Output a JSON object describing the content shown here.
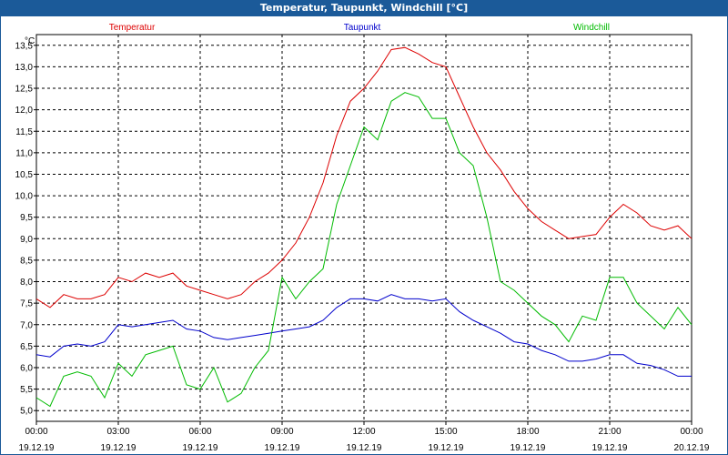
{
  "window": {
    "title": "Temperatur, Taupunkt, Windchill [°C]"
  },
  "chart_data": {
    "type": "line",
    "title": "Temperatur, Taupunkt, Windchill [°C]",
    "ylabel": "°C",
    "ylim": [
      4.75,
      13.75
    ],
    "xlim": [
      0,
      24
    ],
    "grid": true,
    "y_ticks": [
      "5,0",
      "5,5",
      "6,0",
      "6,5",
      "7,0",
      "7,5",
      "8,0",
      "8,5",
      "9,0",
      "9,5",
      "10,0",
      "10,5",
      "11,0",
      "11,5",
      "12,0",
      "12,5",
      "13,0",
      "13,5"
    ],
    "y_tick_values": [
      5.0,
      5.5,
      6.0,
      6.5,
      7.0,
      7.5,
      8.0,
      8.5,
      9.0,
      9.5,
      10.0,
      10.5,
      11.0,
      11.5,
      12.0,
      12.5,
      13.0,
      13.5
    ],
    "x_ticks": [
      {
        "x": 0,
        "time": "00:00",
        "date": "19.12.19"
      },
      {
        "x": 3,
        "time": "03:00",
        "date": "19.12.19"
      },
      {
        "x": 6,
        "time": "06:00",
        "date": "19.12.19"
      },
      {
        "x": 9,
        "time": "09:00",
        "date": "19.12.19"
      },
      {
        "x": 12,
        "time": "12:00",
        "date": "19.12.19"
      },
      {
        "x": 15,
        "time": "15:00",
        "date": "19.12.19"
      },
      {
        "x": 18,
        "time": "18:00",
        "date": "19.12.19"
      },
      {
        "x": 21,
        "time": "21:00",
        "date": "19.12.19"
      },
      {
        "x": 24,
        "time": "00:00",
        "date": "20.12.19"
      }
    ],
    "series": [
      {
        "name": "Temperatur",
        "color": "#dd0000",
        "x": [
          0,
          0.5,
          1,
          1.5,
          2,
          2.5,
          3,
          3.5,
          4,
          4.5,
          5,
          5.5,
          6,
          6.5,
          7,
          7.5,
          8,
          8.5,
          9,
          9.5,
          10,
          10.5,
          11,
          11.5,
          12,
          12.5,
          13,
          13.5,
          14,
          14.5,
          15,
          15.5,
          16,
          16.5,
          17,
          17.5,
          18,
          18.5,
          19,
          19.5,
          20,
          20.5,
          21,
          21.5,
          22,
          22.5,
          23,
          23.5,
          24
        ],
        "values": [
          7.6,
          7.4,
          7.7,
          7.6,
          7.6,
          7.7,
          8.1,
          8.0,
          8.2,
          8.1,
          8.2,
          7.9,
          7.8,
          7.7,
          7.6,
          7.7,
          8.0,
          8.2,
          8.5,
          8.9,
          9.5,
          10.3,
          11.4,
          12.2,
          12.5,
          12.9,
          13.4,
          13.45,
          13.3,
          13.1,
          13.0,
          12.3,
          11.6,
          11.0,
          10.6,
          10.1,
          9.7,
          9.4,
          9.2,
          9.0,
          9.05,
          9.1,
          9.5,
          9.8,
          9.6,
          9.3,
          9.2,
          9.3,
          9.0
        ]
      },
      {
        "name": "Taupunkt",
        "color": "#0000cc",
        "x": [
          0,
          0.5,
          1,
          1.5,
          2,
          2.5,
          3,
          3.5,
          4,
          4.5,
          5,
          5.5,
          6,
          6.5,
          7,
          7.5,
          8,
          8.5,
          9,
          9.5,
          10,
          10.5,
          11,
          11.5,
          12,
          12.5,
          13,
          13.5,
          14,
          14.5,
          15,
          15.5,
          16,
          16.5,
          17,
          17.5,
          18,
          18.5,
          19,
          19.5,
          20,
          20.5,
          21,
          21.5,
          22,
          22.5,
          23,
          23.5,
          24
        ],
        "values": [
          6.3,
          6.25,
          6.5,
          6.55,
          6.5,
          6.6,
          7.0,
          6.95,
          7.0,
          7.05,
          7.1,
          6.9,
          6.85,
          6.7,
          6.65,
          6.7,
          6.75,
          6.8,
          6.85,
          6.9,
          6.95,
          7.1,
          7.4,
          7.6,
          7.6,
          7.55,
          7.7,
          7.6,
          7.6,
          7.55,
          7.6,
          7.3,
          7.1,
          6.95,
          6.8,
          6.6,
          6.55,
          6.4,
          6.3,
          6.15,
          6.15,
          6.2,
          6.3,
          6.3,
          6.1,
          6.05,
          5.95,
          5.8,
          5.8
        ]
      },
      {
        "name": "Windchill",
        "color": "#00bb00",
        "x": [
          0,
          0.5,
          1,
          1.5,
          2,
          2.5,
          3,
          3.5,
          4,
          4.5,
          5,
          5.5,
          6,
          6.5,
          7,
          7.5,
          8,
          8.5,
          9,
          9.5,
          10,
          10.5,
          11,
          11.5,
          12,
          12.5,
          13,
          13.5,
          14,
          14.5,
          15,
          15.5,
          16,
          16.5,
          17,
          17.5,
          18,
          18.5,
          19,
          19.5,
          20,
          20.5,
          21,
          21.5,
          22,
          22.5,
          23,
          23.5,
          24
        ],
        "values": [
          5.3,
          5.1,
          5.8,
          5.9,
          5.8,
          5.3,
          6.1,
          5.8,
          6.3,
          6.4,
          6.5,
          5.6,
          5.5,
          6.0,
          5.2,
          5.4,
          6.0,
          6.4,
          8.1,
          7.6,
          8.0,
          8.3,
          9.8,
          10.7,
          11.6,
          11.3,
          12.2,
          12.4,
          12.3,
          11.8,
          11.8,
          11.0,
          10.7,
          9.5,
          8.0,
          7.8,
          7.5,
          7.2,
          7.0,
          6.6,
          7.2,
          7.1,
          8.1,
          8.1,
          7.5,
          7.2,
          6.9,
          7.4,
          7.0
        ]
      }
    ]
  }
}
